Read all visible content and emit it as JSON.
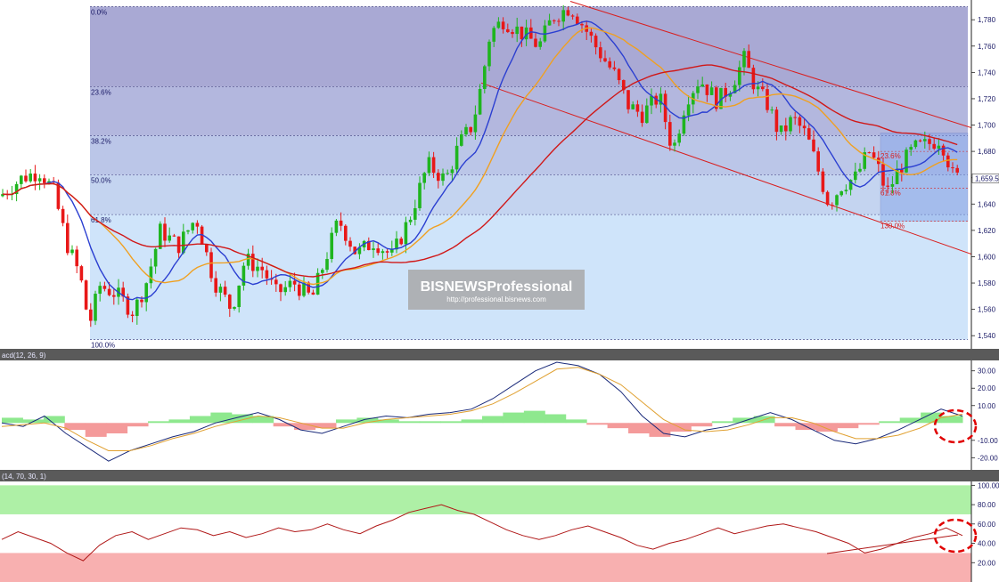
{
  "watermark": {
    "brand": "BISNEWSProfessional",
    "url": "http://professional.bisnews.com"
  },
  "chart_data": [
    {
      "type": "candlestick",
      "panel": "price",
      "ylim": [
        1530,
        1795
      ],
      "y_ticks": [
        "1,780",
        "1,760",
        "1,740",
        "1,720",
        "1,700",
        "1,680",
        "1,660",
        "1,640",
        "1,620",
        "1,600",
        "1,580",
        "1,560",
        "1,540"
      ],
      "y_tick_values": [
        1780,
        1760,
        1740,
        1720,
        1700,
        1680,
        1660,
        1640,
        1620,
        1600,
        1580,
        1560,
        1540
      ],
      "last_price_label": "1,659.5",
      "last_price": 1659.5,
      "fibonacci": [
        {
          "label": "0.0%",
          "price": 1790
        },
        {
          "label": "23.6%",
          "price": 1729
        },
        {
          "label": "38.2%",
          "price": 1692
        },
        {
          "label": "50.0%",
          "price": 1662
        },
        {
          "label": "61.8%",
          "price": 1632
        },
        {
          "label": "100.0%",
          "price": 1537
        }
      ],
      "fibonacci_small": [
        {
          "label": "23.6%",
          "price": 1680
        },
        {
          "label": "61.8%",
          "price": 1652
        },
        {
          "label": "130.0%",
          "price": 1627
        }
      ],
      "moving_average_colors": [
        "#2b3fd1",
        "#f0a020",
        "#d01818"
      ],
      "up_color": "#1fb51f",
      "down_color": "#e81818"
    },
    {
      "type": "line",
      "panel": "macd",
      "title": "acd(12, 26, 9)",
      "y_ticks": [
        "30.00",
        "20.00",
        "10.00",
        "-10.00",
        "-20.00"
      ],
      "y_tick_values": [
        30,
        20,
        10,
        -10,
        -20
      ],
      "ylim": [
        -27,
        36
      ],
      "series": [
        {
          "values": [
            0,
            -2,
            4,
            -6,
            -14,
            -22,
            -16,
            -12,
            -8,
            -5,
            0,
            3,
            6,
            2,
            -4,
            -6,
            -2,
            2,
            4,
            3,
            5,
            6,
            8,
            14,
            22,
            30,
            35,
            33,
            28,
            18,
            4,
            -6,
            -8,
            -4,
            -2,
            2,
            6,
            2,
            -4,
            -10,
            -12,
            -9,
            -4,
            2,
            8,
            4
          ]
        },
        {
          "values": [
            -2,
            -1,
            0,
            -3,
            -10,
            -16,
            -16,
            -13,
            -9,
            -6,
            -2,
            1,
            4,
            3,
            0,
            -3,
            -3,
            0,
            2,
            3,
            4,
            5,
            7,
            11,
            17,
            24,
            31,
            32,
            28,
            22,
            12,
            2,
            -4,
            -5,
            -4,
            -1,
            3,
            3,
            0,
            -5,
            -9,
            -9,
            -7,
            -3,
            3,
            5
          ]
        }
      ],
      "histogram": [
        3,
        2,
        4,
        -4,
        -8,
        -6,
        -2,
        1,
        2,
        4,
        6,
        5,
        4,
        -2,
        -4,
        -3,
        2,
        3,
        2,
        1,
        1,
        1,
        2,
        4,
        6,
        7,
        5,
        2,
        -1,
        -3,
        -6,
        -8,
        -5,
        -2,
        1,
        3,
        4,
        -2,
        -4,
        -5,
        -3,
        -1,
        1,
        3,
        6,
        4
      ]
    },
    {
      "type": "line",
      "panel": "rsi",
      "title": "(14, 70, 30, 1)",
      "y_ticks": [
        "100.00",
        "80.00",
        "60.00",
        "40.00",
        "20.00"
      ],
      "y_tick_values": [
        100,
        80,
        60,
        40,
        20
      ],
      "ylim": [
        0,
        104
      ],
      "overbought": 70,
      "oversold": 30,
      "values": [
        44,
        52,
        46,
        40,
        30,
        22,
        38,
        48,
        52,
        44,
        50,
        56,
        54,
        48,
        52,
        46,
        50,
        56,
        52,
        54,
        60,
        54,
        50,
        58,
        64,
        72,
        76,
        80,
        74,
        70,
        62,
        54,
        48,
        44,
        48,
        54,
        58,
        52,
        46,
        38,
        34,
        40,
        44,
        50,
        56,
        50,
        54,
        58,
        60,
        56,
        52,
        46,
        40,
        30,
        34,
        40,
        46,
        50,
        56,
        48
      ]
    }
  ]
}
